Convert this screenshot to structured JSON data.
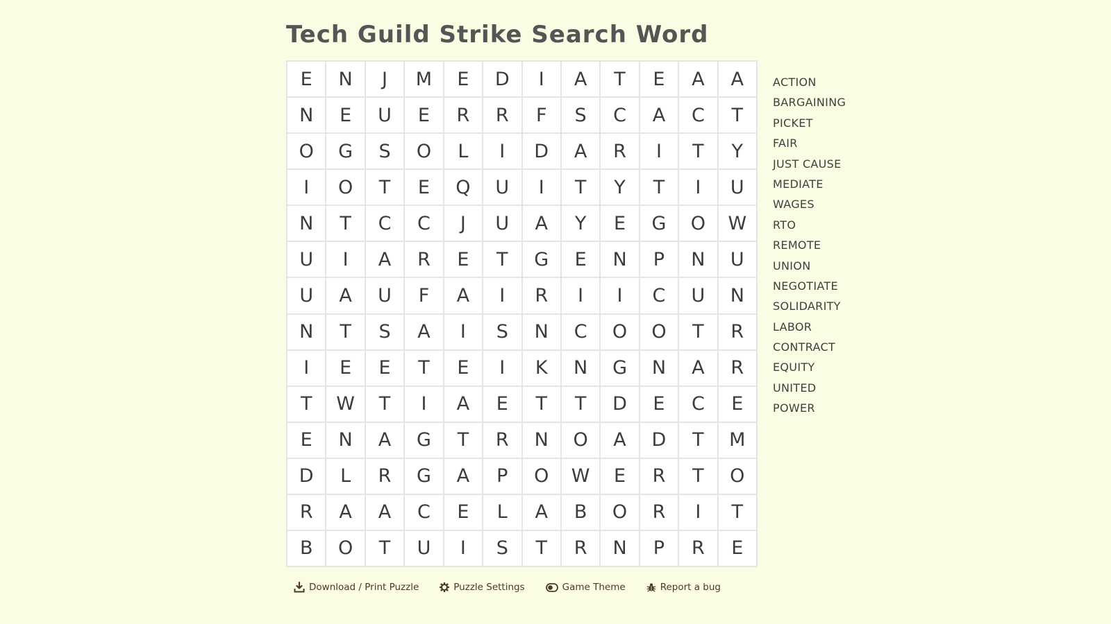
{
  "title": "Tech Guild Strike Search Word",
  "grid": [
    [
      "E",
      "N",
      "J",
      "M",
      "E",
      "D",
      "I",
      "A",
      "T",
      "E",
      "A",
      "A"
    ],
    [
      "N",
      "E",
      "U",
      "E",
      "R",
      "R",
      "F",
      "S",
      "C",
      "A",
      "C",
      "T"
    ],
    [
      "O",
      "G",
      "S",
      "O",
      "L",
      "I",
      "D",
      "A",
      "R",
      "I",
      "T",
      "Y"
    ],
    [
      "I",
      "O",
      "T",
      "E",
      "Q",
      "U",
      "I",
      "T",
      "Y",
      "T",
      "I",
      "U"
    ],
    [
      "N",
      "T",
      "C",
      "C",
      "J",
      "U",
      "A",
      "Y",
      "E",
      "G",
      "O",
      "W"
    ],
    [
      "U",
      "I",
      "A",
      "R",
      "E",
      "T",
      "G",
      "E",
      "N",
      "P",
      "N",
      "U"
    ],
    [
      "U",
      "A",
      "U",
      "F",
      "A",
      "I",
      "R",
      "I",
      "I",
      "C",
      "U",
      "N"
    ],
    [
      "N",
      "T",
      "S",
      "A",
      "I",
      "S",
      "N",
      "C",
      "O",
      "O",
      "T",
      "R"
    ],
    [
      "I",
      "E",
      "E",
      "T",
      "E",
      "I",
      "K",
      "N",
      "G",
      "N",
      "A",
      "R"
    ],
    [
      "T",
      "W",
      "T",
      "I",
      "A",
      "E",
      "T",
      "T",
      "D",
      "E",
      "C",
      "E"
    ],
    [
      "E",
      "N",
      "A",
      "G",
      "T",
      "R",
      "N",
      "O",
      "A",
      "D",
      "T",
      "M"
    ],
    [
      "D",
      "L",
      "R",
      "G",
      "A",
      "P",
      "O",
      "W",
      "E",
      "R",
      "T",
      "O"
    ],
    [
      "R",
      "A",
      "A",
      "C",
      "E",
      "L",
      "A",
      "B",
      "O",
      "R",
      "I",
      "T"
    ],
    [
      "B",
      "O",
      "T",
      "U",
      "I",
      "S",
      "T",
      "R",
      "N",
      "P",
      "R",
      "E"
    ]
  ],
  "words": [
    "ACTION",
    "BARGAINING",
    "PICKET",
    "FAIR",
    "JUST CAUSE",
    "MEDIATE",
    "WAGES",
    "RTO",
    "REMOTE",
    "UNION",
    "NEGOTIATE",
    "SOLIDARITY",
    "LABOR",
    "CONTRACT",
    "EQUITY",
    "UNITED",
    "POWER"
  ],
  "toolbar": {
    "download_label": "Download / Print Puzzle",
    "settings_label": "Puzzle Settings",
    "theme_label": "Game Theme",
    "bug_label": "Report a bug"
  },
  "icons": {
    "download": "download-icon",
    "settings": "gear-icon",
    "theme": "toggle-icon",
    "bug": "bug-icon"
  },
  "colors": {
    "background": "#fafde3",
    "toolbar_text": "#4e3a1e"
  }
}
